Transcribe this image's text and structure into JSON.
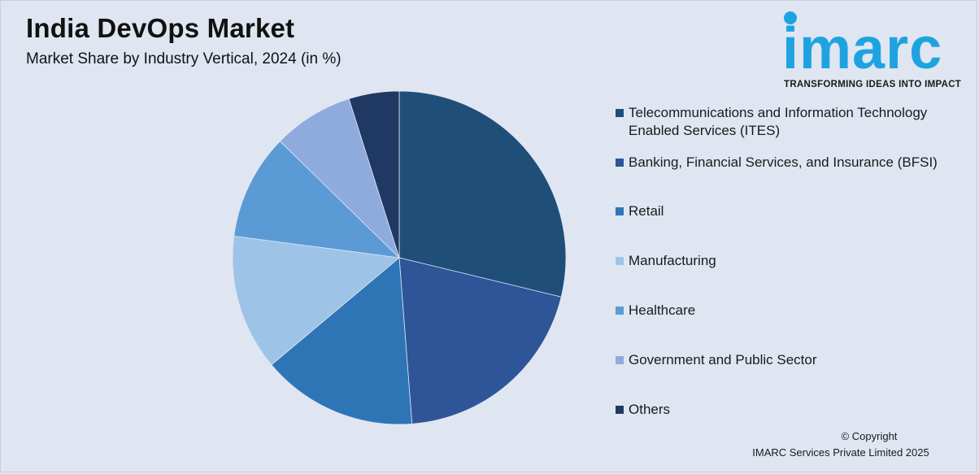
{
  "header": {
    "title": "India DevOps Market",
    "subtitle": "Market Share by Industry Vertical, 2024 (in %)"
  },
  "logo": {
    "wordmark": "imarc",
    "tagline": "TRANSFORMING IDEAS INTO IMPACT",
    "color": "#1fa3e0"
  },
  "chart_data": {
    "type": "pie",
    "title": "India DevOps Market",
    "subtitle": "Market Share by Industry Vertical, 2024 (in %)",
    "start_angle_deg": 0,
    "direction": "clockwise",
    "legend_position": "right",
    "slices": [
      {
        "label": "Telecommunications and Information Technology Enabled Services (ITES)",
        "value": 29.5,
        "color": "#1f4e79"
      },
      {
        "label": "Banking, Financial Services, and Insurance (BFSI)",
        "value": 20.5,
        "color": "#2e5597"
      },
      {
        "label": "Retail",
        "value": 15.5,
        "color": "#2e75b6"
      },
      {
        "label": "Manufacturing",
        "value": 13.5,
        "color": "#9dc3e6"
      },
      {
        "label": "Healthcare",
        "value": 10.5,
        "color": "#5b9bd5"
      },
      {
        "label": "Government and Public Sector",
        "value": 8.0,
        "color": "#8faadc"
      },
      {
        "label": "Others",
        "value": 5.0,
        "color": "#203864"
      }
    ]
  },
  "footer": {
    "copyright_line1": "© Copyright",
    "copyright_line2": "IMARC Services Private Limited 2025"
  }
}
